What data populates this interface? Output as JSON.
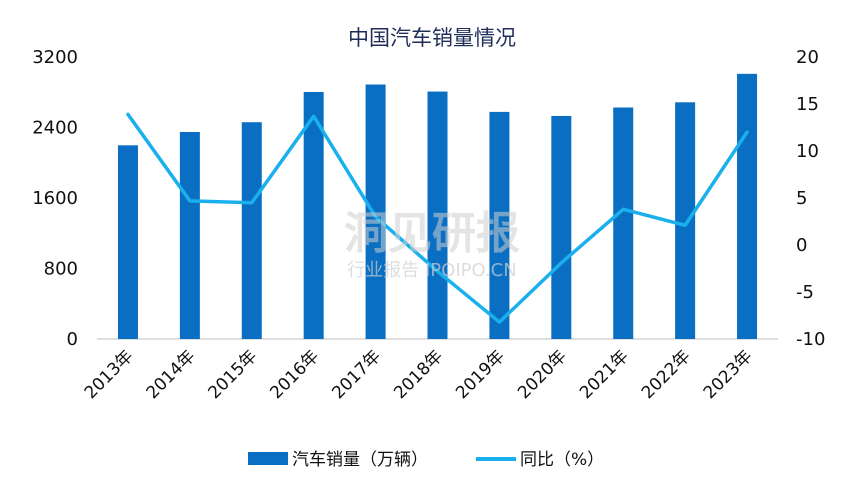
{
  "chart_data": {
    "type": "bar+line",
    "title": "中国汽车销量情况",
    "categories": [
      "2013年",
      "2014年",
      "2015年",
      "2016年",
      "2017年",
      "2018年",
      "2019年",
      "2020年",
      "2021年",
      "2022年",
      "2023年"
    ],
    "series": [
      {
        "name": "汽车销量（万辆）",
        "type": "bar",
        "axis": "left",
        "color": "#0a6fc2",
        "values": [
          2198,
          2349,
          2460,
          2803,
          2888,
          2808,
          2577,
          2531,
          2627,
          2686,
          3009
        ]
      },
      {
        "name": "同比（%）",
        "type": "line",
        "axis": "right",
        "color": "#1ab0ee",
        "values": [
          13.9,
          4.7,
          4.5,
          13.7,
          3.0,
          -2.8,
          -8.2,
          -1.9,
          3.8,
          2.1,
          12.0
        ]
      }
    ],
    "y_left": {
      "min": 0,
      "max": 3200,
      "ticks": [
        0,
        800,
        1600,
        2400,
        3200
      ]
    },
    "y_right": {
      "min": -10,
      "max": 20,
      "ticks": [
        -10,
        -5,
        0,
        5,
        10,
        15,
        20
      ]
    },
    "legend": "bottom-center",
    "grid": false
  },
  "watermark": {
    "main": "洞见研报",
    "sub": "行业报告 IPOIPO.CN"
  }
}
